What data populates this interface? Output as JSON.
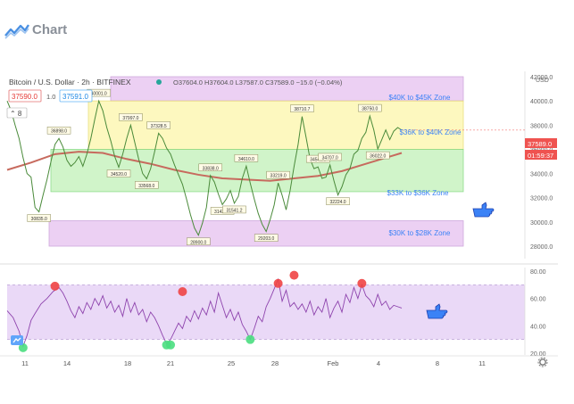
{
  "header": {
    "title": "Chart"
  },
  "legend": {
    "symbol_text": "Bitcoin / U.S. Dollar · 2h · BITFINEX",
    "ohlc": "O37604.0 H37604.0 L37587.0 C37589.0 −15.0 (−0.04%)",
    "sell_price": "37590.0",
    "spread": "1.0",
    "buy_price": "37591.0"
  },
  "axis": {
    "currency": "USD",
    "last_price": "37589.0",
    "countdown": "01:59:37"
  },
  "zone_labels": [
    "$40K to $45K Zone",
    "$36K to $40K Zone",
    "$33K to $36K Zone",
    "$30K to $28K Zone"
  ],
  "price_annotations": [
    "40001.0",
    "36898.0",
    "37997.0",
    "37328.5",
    "38710.7",
    "38750.0",
    "34520.0",
    "33568.0",
    "34610.0",
    "34549.0",
    "34707.0",
    "36022.0",
    "33838.0",
    "33219.0",
    "32224.0",
    "31433.4",
    "31541.2",
    "30835.0",
    "28900.0",
    "29203.0"
  ],
  "chart_data": [
    {
      "type": "line",
      "yaxis_ticks": [
        28000,
        30000,
        32000,
        34000,
        36000,
        38000,
        40000,
        42000
      ],
      "ylim": [
        27000,
        42000
      ],
      "xaxis_ticks": [
        "11",
        "14",
        "18",
        "21",
        "25",
        "28",
        "Feb",
        "4",
        "8",
        "11"
      ],
      "zones": [
        {
          "name": "$40K to $45K Zone",
          "low": 40000,
          "high": 42500,
          "color": "#e9c8f2"
        },
        {
          "name": "$36K to $40K Zone",
          "low": 36000,
          "high": 40000,
          "color": "#fdf7b4"
        },
        {
          "name": "$33K to $36K Zone",
          "low": 32500,
          "high": 36000,
          "color": "#c8f3c0"
        },
        {
          "name": "$30K to $28K Zone",
          "low": 28000,
          "high": 30100,
          "color": "#e9c8f2"
        }
      ],
      "price_series": [
        [
          0,
          40000
        ],
        [
          2,
          39200
        ],
        [
          4,
          38000
        ],
        [
          6,
          36900
        ],
        [
          8,
          35300
        ],
        [
          10,
          34000
        ],
        [
          12,
          33700
        ],
        [
          14,
          31200
        ],
        [
          16,
          30835
        ],
        [
          18,
          32200
        ],
        [
          20,
          33500
        ],
        [
          22,
          35000
        ],
        [
          24,
          36400
        ],
        [
          26,
          36898
        ],
        [
          28,
          36200
        ],
        [
          30,
          35100
        ],
        [
          32,
          34600
        ],
        [
          34,
          34900
        ],
        [
          36,
          35400
        ],
        [
          38,
          34600
        ],
        [
          40,
          35600
        ],
        [
          42,
          36900
        ],
        [
          44,
          38500
        ],
        [
          46,
          40001
        ],
        [
          48,
          39200
        ],
        [
          50,
          37800
        ],
        [
          52,
          36700
        ],
        [
          54,
          35400
        ],
        [
          56,
          34520
        ],
        [
          58,
          35600
        ],
        [
          60,
          36900
        ],
        [
          62,
          37997
        ],
        [
          64,
          36600
        ],
        [
          66,
          35200
        ],
        [
          68,
          34000
        ],
        [
          70,
          33568
        ],
        [
          72,
          34400
        ],
        [
          74,
          35800
        ],
        [
          76,
          37328
        ],
        [
          78,
          36900
        ],
        [
          80,
          36100
        ],
        [
          82,
          35600
        ],
        [
          84,
          34700
        ],
        [
          86,
          33900
        ],
        [
          88,
          33100
        ],
        [
          90,
          31900
        ],
        [
          92,
          30600
        ],
        [
          94,
          29500
        ],
        [
          96,
          28900
        ],
        [
          98,
          29900
        ],
        [
          100,
          31200
        ],
        [
          102,
          33838
        ],
        [
          104,
          33300
        ],
        [
          106,
          32300
        ],
        [
          108,
          31433
        ],
        [
          110,
          31900
        ],
        [
          112,
          32600
        ],
        [
          114,
          31541
        ],
        [
          116,
          32100
        ],
        [
          118,
          33600
        ],
        [
          120,
          34610
        ],
        [
          122,
          33200
        ],
        [
          124,
          31900
        ],
        [
          126,
          30700
        ],
        [
          128,
          29800
        ],
        [
          130,
          29203
        ],
        [
          132,
          30200
        ],
        [
          134,
          31400
        ],
        [
          136,
          33219
        ],
        [
          138,
          32200
        ],
        [
          140,
          31000
        ],
        [
          142,
          32600
        ],
        [
          144,
          34600
        ],
        [
          146,
          36400
        ],
        [
          148,
          38710
        ],
        [
          150,
          37000
        ],
        [
          152,
          35200
        ],
        [
          154,
          34400
        ],
        [
          156,
          34549
        ],
        [
          158,
          33600
        ],
        [
          160,
          33700
        ],
        [
          162,
          34707
        ],
        [
          164,
          33400
        ],
        [
          166,
          32224
        ],
        [
          168,
          32900
        ],
        [
          170,
          33900
        ],
        [
          172,
          34400
        ],
        [
          174,
          35600
        ],
        [
          176,
          35900
        ],
        [
          178,
          36900
        ],
        [
          180,
          37400
        ],
        [
          182,
          38750
        ],
        [
          184,
          37600
        ],
        [
          186,
          36022
        ],
        [
          188,
          36800
        ],
        [
          190,
          37600
        ],
        [
          192,
          36800
        ],
        [
          194,
          37500
        ],
        [
          196,
          37800
        ],
        [
          198,
          37589
        ]
      ],
      "ma_series": [
        [
          0,
          34300
        ],
        [
          12,
          34900
        ],
        [
          24,
          35600
        ],
        [
          36,
          35800
        ],
        [
          48,
          35700
        ],
        [
          60,
          35200
        ],
        [
          72,
          34800
        ],
        [
          84,
          34300
        ],
        [
          96,
          33900
        ],
        [
          108,
          33600
        ],
        [
          120,
          33500
        ],
        [
          132,
          33400
        ],
        [
          144,
          33600
        ],
        [
          156,
          33800
        ],
        [
          168,
          34200
        ],
        [
          180,
          34800
        ],
        [
          192,
          35400
        ],
        [
          198,
          35700
        ]
      ]
    },
    {
      "type": "line",
      "name": "RSI",
      "yaxis_ticks": [
        20,
        40,
        60,
        80
      ],
      "ylim": [
        20,
        85
      ],
      "bands": [
        30,
        70
      ],
      "rsi_series": [
        [
          0,
          51
        ],
        [
          3,
          46
        ],
        [
          6,
          36
        ],
        [
          8,
          25
        ],
        [
          10,
          33
        ],
        [
          12,
          44
        ],
        [
          14,
          49
        ],
        [
          17,
          56
        ],
        [
          20,
          60
        ],
        [
          23,
          65
        ],
        [
          26,
          68
        ],
        [
          28,
          64
        ],
        [
          30,
          58
        ],
        [
          32,
          51
        ],
        [
          34,
          46
        ],
        [
          36,
          54
        ],
        [
          38,
          49
        ],
        [
          40,
          57
        ],
        [
          42,
          52
        ],
        [
          44,
          60
        ],
        [
          46,
          55
        ],
        [
          48,
          62
        ],
        [
          50,
          53
        ],
        [
          52,
          58
        ],
        [
          54,
          50
        ],
        [
          56,
          55
        ],
        [
          58,
          47
        ],
        [
          60,
          60
        ],
        [
          62,
          50
        ],
        [
          64,
          57
        ],
        [
          66,
          48
        ],
        [
          68,
          52
        ],
        [
          70,
          43
        ],
        [
          72,
          50
        ],
        [
          74,
          46
        ],
        [
          76,
          40
        ],
        [
          78,
          33
        ],
        [
          80,
          27
        ],
        [
          82,
          30
        ],
        [
          84,
          36
        ],
        [
          86,
          42
        ],
        [
          88,
          38
        ],
        [
          90,
          47
        ],
        [
          92,
          43
        ],
        [
          94,
          51
        ],
        [
          96,
          45
        ],
        [
          98,
          53
        ],
        [
          100,
          48
        ],
        [
          102,
          58
        ],
        [
          104,
          50
        ],
        [
          106,
          64
        ],
        [
          108,
          55
        ],
        [
          110,
          46
        ],
        [
          112,
          52
        ],
        [
          114,
          44
        ],
        [
          116,
          50
        ],
        [
          118,
          41
        ],
        [
          120,
          36
        ],
        [
          122,
          30
        ],
        [
          124,
          38
        ],
        [
          126,
          47
        ],
        [
          128,
          43
        ],
        [
          130,
          54
        ],
        [
          132,
          60
        ],
        [
          134,
          67
        ],
        [
          136,
          74
        ],
        [
          138,
          58
        ],
        [
          140,
          66
        ],
        [
          142,
          54
        ],
        [
          144,
          57
        ],
        [
          146,
          52
        ],
        [
          148,
          56
        ],
        [
          150,
          50
        ],
        [
          152,
          58
        ],
        [
          154,
          48
        ],
        [
          156,
          54
        ],
        [
          158,
          50
        ],
        [
          160,
          60
        ],
        [
          162,
          46
        ],
        [
          164,
          53
        ],
        [
          166,
          58
        ],
        [
          168,
          50
        ],
        [
          170,
          63
        ],
        [
          172,
          57
        ],
        [
          174,
          68
        ],
        [
          176,
          60
        ],
        [
          178,
          70
        ],
        [
          180,
          62
        ],
        [
          182,
          59
        ],
        [
          184,
          54
        ],
        [
          186,
          63
        ],
        [
          188,
          55
        ],
        [
          190,
          58
        ],
        [
          192,
          52
        ],
        [
          194,
          55
        ],
        [
          196,
          54
        ],
        [
          198,
          53
        ]
      ],
      "overbought_markers": [
        [
          24,
          69
        ],
        [
          88,
          65
        ],
        [
          136,
          71
        ],
        [
          144,
          77
        ],
        [
          178,
          71
        ]
      ],
      "oversold_markers": [
        [
          8,
          24
        ],
        [
          80,
          26
        ],
        [
          82,
          26
        ],
        [
          122,
          30
        ]
      ]
    }
  ]
}
